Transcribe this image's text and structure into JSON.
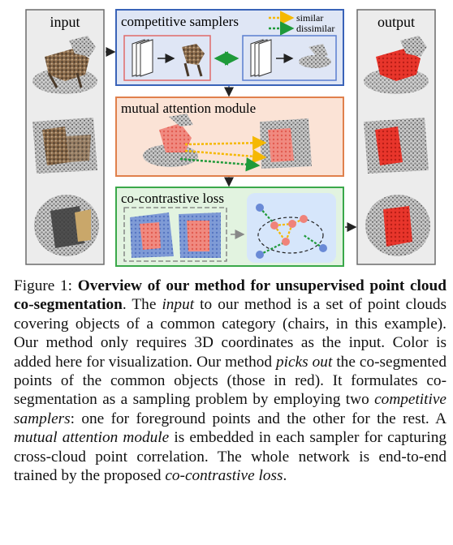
{
  "figure": {
    "panels": {
      "input_label": "input",
      "output_label": "output"
    },
    "competitive_samplers": {
      "title": "competitive samplers",
      "legend_similar": "similar",
      "legend_dissimilar": "dissimilar",
      "colors": {
        "similar": "#f5b800",
        "dissimilar": "#1f9a3a"
      }
    },
    "mutual_attention": {
      "title": "mutual attention module"
    },
    "co_contrastive": {
      "title": "co-contrastive loss"
    },
    "colors": {
      "samplers_fill": "#dfe6f5",
      "samplers_border": "#3a63b8",
      "attention_fill": "#fbe3d6",
      "attention_border": "#e0804c",
      "loss_fill": "#e2f3e0",
      "loss_border": "#3aa84a",
      "segment_red": "#e8352b",
      "point_gray": "#9a9a9a"
    }
  },
  "caption": {
    "label": "Figure 1:",
    "bold_title": "Overview of our method for unsupervised point cloud co-segmentation",
    "t1": ". The ",
    "i1": "input",
    "t2": " to our method is a set of point clouds covering objects of a common category (chairs, in this example). Our method only requires 3D coordinates as the input. Color is added here for visualization. Our method ",
    "i2": "picks out",
    "t3": " the co-segmented points of the common objects (those in red). It formulates co-segmentation as a sampling problem by employing two ",
    "i3": "competitive samplers",
    "t4": ": one for foreground points and the other for the rest. A ",
    "i4": "mutual attention module",
    "t5": " is embedded in each sampler for capturing cross-cloud point correlation. The whole network is end-to-end trained by the proposed ",
    "i5": "co-contrastive loss",
    "t6": "."
  }
}
